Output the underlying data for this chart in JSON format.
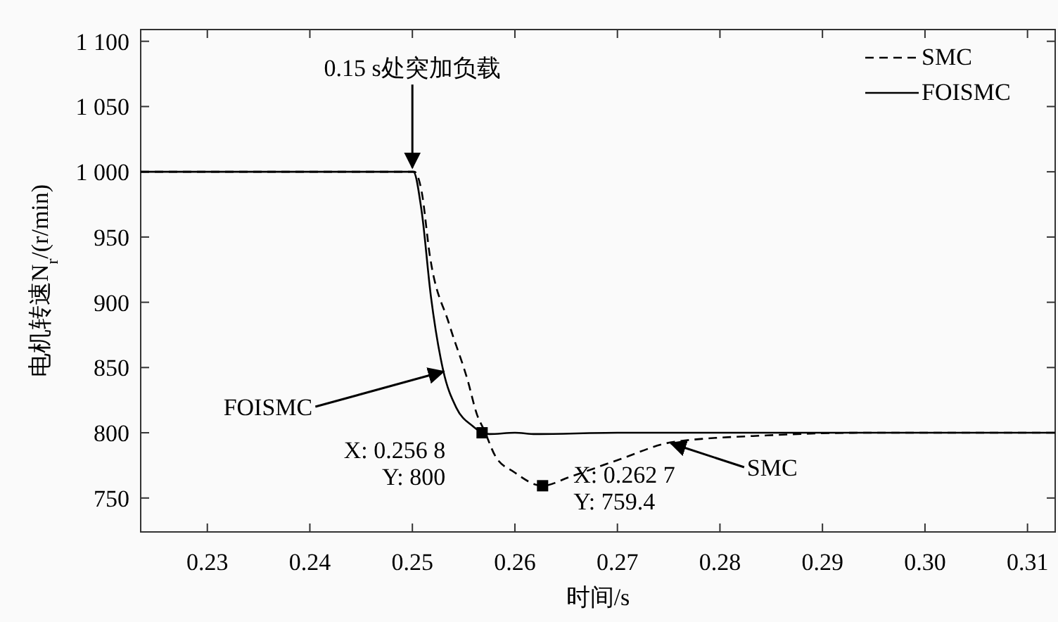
{
  "chart_data": {
    "type": "line",
    "xlabel": "时间/s",
    "ylabel": "电机转速N$_{r}$/(r/min)",
    "xlim": [
      0.2235,
      0.3127
    ],
    "ylim": [
      724,
      1109
    ],
    "xticks": [
      0.23,
      0.24,
      0.25,
      0.26,
      0.27,
      0.28,
      0.29,
      {
        "value": 0.3,
        "label": "0.30"
      },
      0.31
    ],
    "yticks": [
      750,
      800,
      850,
      900,
      950,
      {
        "value": 1000,
        "label": "1 000"
      },
      {
        "value": 1050,
        "label": "1 050"
      },
      {
        "value": 1100,
        "label": "1 100"
      }
    ],
    "grid": false,
    "legend": "top right",
    "series": [
      {
        "name": "SMC",
        "color": "#000000",
        "line_style": "dashed",
        "x": [
          0.2235,
          0.24,
          0.2502,
          0.2509,
          0.2517,
          0.2536,
          0.2554,
          0.2563,
          0.257,
          0.2581,
          0.2599,
          0.2627,
          0.2653,
          0.27,
          0.2755,
          0.2846,
          0.2937,
          0.3127
        ],
        "values": [
          1000,
          1000,
          1000,
          985,
          936,
          883,
          840,
          814,
          802,
          782,
          770,
          759.4,
          766,
          779,
          793,
          798,
          800,
          800
        ]
      },
      {
        "name": "FOISMC",
        "color": "#000000",
        "line_style": "solid",
        "x": [
          0.2235,
          0.24,
          0.2501,
          0.2509,
          0.2518,
          0.253,
          0.2543,
          0.2559,
          0.2566,
          0.2575,
          0.26,
          0.262,
          0.27,
          0.3127
        ],
        "values": [
          1000,
          1000,
          1000,
          970,
          905,
          848,
          819,
          805,
          801,
          799,
          800,
          799,
          800,
          800
        ]
      },
      {
        "type": "scatter",
        "marker": "square",
        "color": "#000000",
        "x": [
          0.2568,
          0.2627
        ],
        "values": [
          800,
          759.4
        ]
      }
    ],
    "annotations": [
      {
        "text": "0.15 s处突加负载",
        "x": 0.25,
        "y": 1000
      },
      {
        "text": "FOISMC",
        "x": 0.2533,
        "y": 848
      },
      {
        "text": "X: 0.256 8\nY: 800",
        "x": 0.2568,
        "y": 800
      },
      {
        "text": "X: 0.262 7\nY: 759.4",
        "x": 0.2627,
        "y": 759.4
      },
      {
        "text": "SMC",
        "x": 0.2755,
        "y": 793
      }
    ]
  }
}
